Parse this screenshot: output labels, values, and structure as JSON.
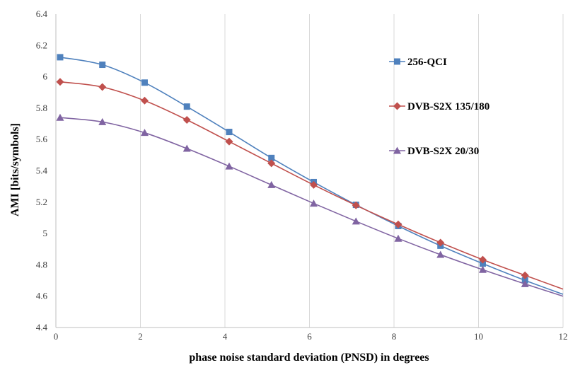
{
  "chart_data": {
    "type": "line",
    "title": "",
    "xlabel": "phase noise standard deviation (PNSD) in degrees",
    "ylabel": "AMI [bits/symbols]",
    "xlim": [
      0,
      12
    ],
    "ylim": [
      4.4,
      6.4
    ],
    "x_ticks": [
      "0",
      "2",
      "4",
      "6",
      "8",
      "10",
      "12"
    ],
    "y_ticks": [
      "4.4",
      "4.6",
      "4.8",
      "5",
      "5.2",
      "5.4",
      "5.6",
      "5.8",
      "6",
      "6.2",
      "6.4"
    ],
    "grid": "vertical",
    "legend_position": "right",
    "series": [
      {
        "name": "256-QCI",
        "color": "#4f81bd",
        "marker": "square",
        "x": [
          0.1,
          1.1,
          2.1,
          3.1,
          4.1,
          5.1,
          6.1,
          7.1,
          8.1,
          9.1,
          10.1,
          11.1,
          12
        ],
        "y": [
          6.125,
          6.077,
          5.963,
          5.81,
          5.648,
          5.482,
          5.328,
          5.183,
          5.048,
          4.922,
          4.808,
          4.701,
          4.612
        ],
        "marker_count": 12
      },
      {
        "name": "DVB-S2X 135/180",
        "color": "#c0504d",
        "marker": "diamond",
        "x": [
          0.1,
          1.1,
          2.1,
          3.1,
          4.1,
          5.1,
          6.1,
          7.1,
          8.1,
          9.1,
          10.1,
          11.1,
          12
        ],
        "y": [
          5.968,
          5.935,
          5.848,
          5.725,
          5.587,
          5.448,
          5.31,
          5.18,
          5.058,
          4.942,
          4.833,
          4.733,
          4.645
        ],
        "marker_count": 12
      },
      {
        "name": "DVB-S2X 20/30",
        "color": "#8064a2",
        "marker": "triangle",
        "x": [
          0.1,
          1.1,
          2.1,
          3.1,
          4.1,
          5.1,
          6.1,
          7.1,
          8.1,
          9.1,
          10.1,
          11.1,
          12
        ],
        "y": [
          5.74,
          5.712,
          5.643,
          5.542,
          5.429,
          5.31,
          5.192,
          5.078,
          4.968,
          4.865,
          4.769,
          4.678,
          4.6
        ],
        "marker_count": 12
      }
    ]
  }
}
